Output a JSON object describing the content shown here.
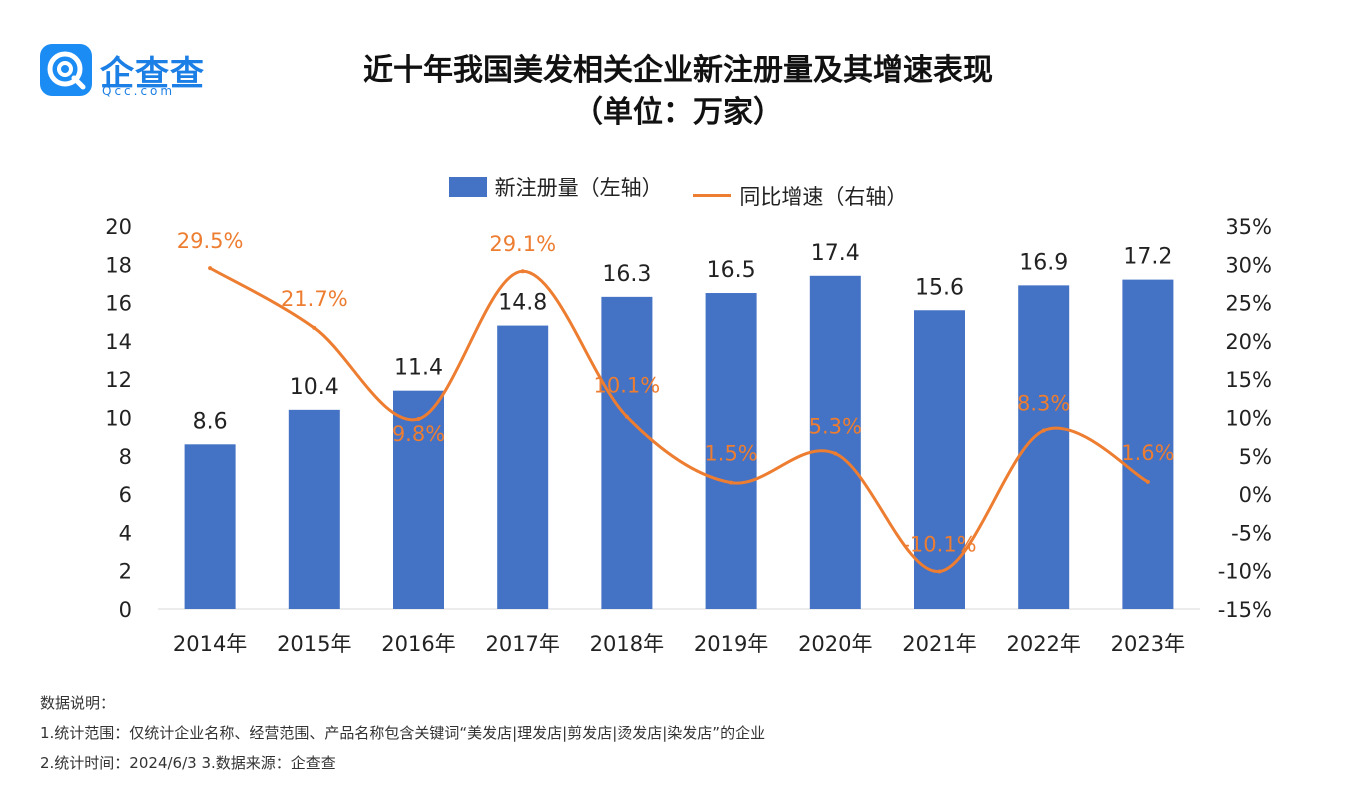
{
  "logo": {
    "name": "企查查",
    "url": "Qcc.com"
  },
  "title_line1": "近十年我国美发相关企业新注册量及其增速表现",
  "title_line2": "（单位：万家）",
  "legend": {
    "bar_label": "新注册量（左轴）",
    "line_label": "同比增速（右轴）"
  },
  "colors": {
    "bar": "#4472c4",
    "line": "#ed7d31",
    "brand": "#1c8cf5"
  },
  "chart_data": {
    "type": "bar",
    "categories": [
      "2014年",
      "2015年",
      "2016年",
      "2017年",
      "2018年",
      "2019年",
      "2020年",
      "2021年",
      "2022年",
      "2023年"
    ],
    "series": [
      {
        "name": "新注册量（左轴）",
        "type": "bar",
        "axis": "left",
        "values": [
          8.6,
          10.4,
          11.4,
          14.8,
          16.3,
          16.5,
          17.4,
          15.6,
          16.9,
          17.2
        ],
        "labels": [
          "8.6",
          "10.4",
          "11.4",
          "14.8",
          "16.3",
          "16.5",
          "17.4",
          "15.6",
          "16.9",
          "17.2"
        ]
      },
      {
        "name": "同比增速（右轴）",
        "type": "line",
        "axis": "right",
        "values": [
          29.5,
          21.7,
          9.8,
          29.1,
          10.1,
          1.5,
          5.3,
          -10.1,
          8.3,
          1.6
        ],
        "labels": [
          "29.5%",
          "21.7%",
          "9.8%",
          "29.1%",
          "10.1%",
          "1.5%",
          "5.3%",
          "-10.1%",
          "8.3%",
          "1.6%"
        ]
      }
    ],
    "y_left": {
      "min": 0,
      "max": 20,
      "step": 2,
      "ticks": [
        "0",
        "2",
        "4",
        "6",
        "8",
        "10",
        "12",
        "14",
        "16",
        "18",
        "20"
      ]
    },
    "y_right": {
      "min": -15,
      "max": 35,
      "step": 5,
      "ticks": [
        "-15%",
        "-10%",
        "-5%",
        "0%",
        "5%",
        "10%",
        "15%",
        "20%",
        "25%",
        "30%",
        "35%"
      ]
    },
    "grid": false,
    "legend_position": "top"
  },
  "notes": {
    "header": "数据说明：",
    "line1": "1.统计范围：仅统计企业名称、经营范围、产品名称包含关键词“美发店|理发店|剪发店|烫发店|染发店”的企业",
    "line2": "2.统计时间：2024/6/3      3.数据来源：企查查"
  }
}
